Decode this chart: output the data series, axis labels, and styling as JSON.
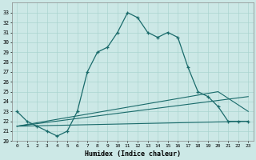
{
  "xlabel": "Humidex (Indice chaleur)",
  "bg_color": "#cce8e6",
  "line_color": "#1a6b6b",
  "grid_color": "#aad4d0",
  "xlim": [
    -0.5,
    23.5
  ],
  "ylim": [
    20,
    34
  ],
  "yticks": [
    20,
    21,
    22,
    23,
    24,
    25,
    26,
    27,
    28,
    29,
    30,
    31,
    32,
    33
  ],
  "xticks": [
    0,
    1,
    2,
    3,
    4,
    5,
    6,
    7,
    8,
    9,
    10,
    11,
    12,
    13,
    14,
    15,
    16,
    17,
    18,
    19,
    20,
    21,
    22,
    23
  ],
  "xtick_labels": [
    "0",
    "1",
    "2",
    "3",
    "4",
    "5",
    "6",
    "7",
    "8",
    "9",
    "10",
    "11",
    "12",
    "13",
    "14",
    "15",
    "16",
    "17",
    "18",
    "19",
    "20",
    "21",
    "22",
    "23"
  ],
  "line1_x": [
    0,
    1,
    2,
    3,
    4,
    5,
    6,
    7,
    8,
    9,
    10,
    11,
    12,
    13,
    14,
    15,
    16,
    17,
    18,
    19,
    20,
    21,
    22,
    23
  ],
  "line1_y": [
    23.0,
    22.0,
    21.5,
    21.0,
    20.5,
    21.0,
    23.0,
    27.0,
    29.0,
    29.5,
    31.0,
    33.0,
    32.5,
    31.0,
    30.5,
    31.0,
    30.5,
    27.5,
    25.0,
    24.5,
    23.5,
    22.0,
    22.0,
    22.0
  ],
  "line2_x": [
    0,
    23
  ],
  "line2_y": [
    21.5,
    22.0
  ],
  "line3_x": [
    0,
    20,
    23
  ],
  "line3_y": [
    21.5,
    25.0,
    23.0
  ],
  "line4_x": [
    0,
    23
  ],
  "line4_y": [
    21.5,
    24.5
  ]
}
